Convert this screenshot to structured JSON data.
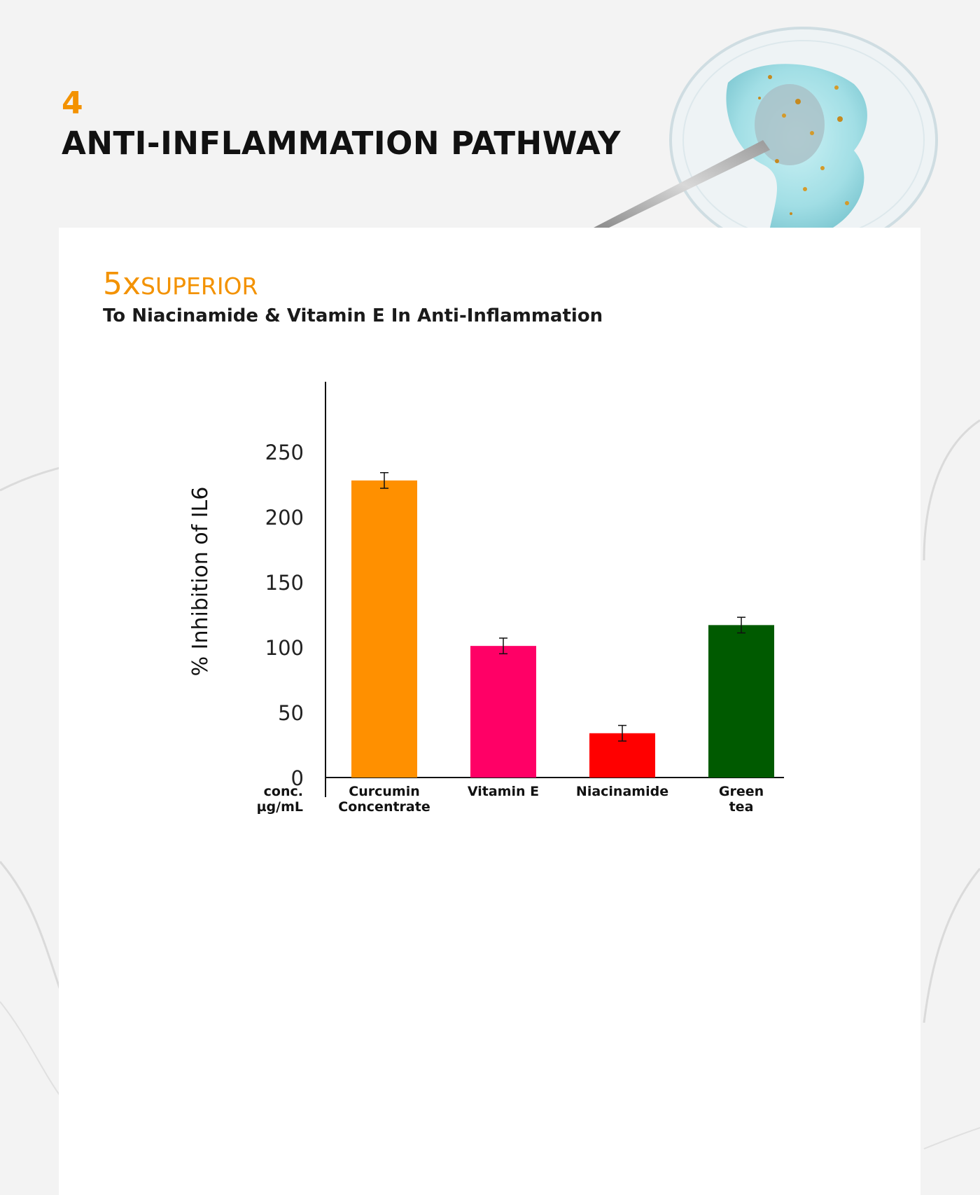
{
  "header": {
    "section_number": "4",
    "section_title": "ANTI-INFLAMMATION PATHWAY"
  },
  "headline": {
    "multiplier": "5x",
    "label": "SUPERIOR",
    "subtitle": "To Niacinamide & Vitamin E In Anti-Inflammation"
  },
  "colors": {
    "accent": "#f39200"
  },
  "chart_data": {
    "type": "bar",
    "ylabel": "% Inhibition of IL6",
    "xlabel": "",
    "ylim": [
      0,
      250
    ],
    "yticks": [
      0,
      50,
      100,
      150,
      200,
      250
    ],
    "axis_note": [
      "conc.",
      "µg/mL"
    ],
    "categories": [
      [
        "Curcumin",
        "Concentrate"
      ],
      [
        "Vitamin E"
      ],
      [
        "Niacinamide"
      ],
      [
        "Green",
        "tea"
      ]
    ],
    "values": [
      228,
      101,
      34,
      117
    ],
    "error": [
      6,
      6,
      6,
      6
    ],
    "colors": [
      "#ff9000",
      "#ff0066",
      "#ff0000",
      "#005a00"
    ],
    "grid": false
  }
}
